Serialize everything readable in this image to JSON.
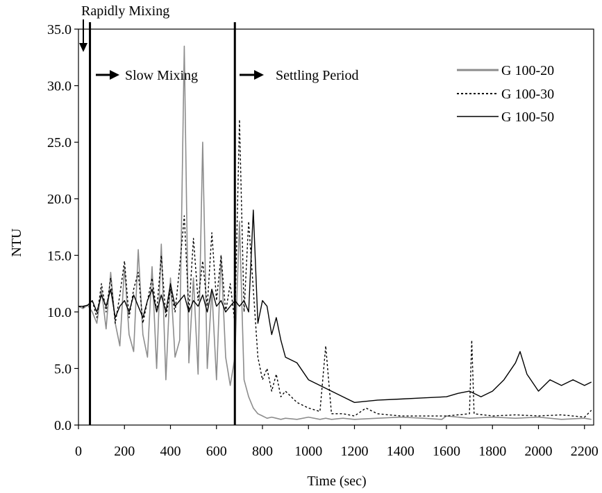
{
  "chart_data": {
    "type": "line",
    "title": "",
    "xlabel": "Time (sec)",
    "ylabel": "NTU",
    "xlim": [
      0,
      2240
    ],
    "ylim": [
      0,
      35
    ],
    "x_ticks": [
      0,
      200,
      400,
      600,
      800,
      1000,
      1200,
      1400,
      1600,
      1800,
      2000,
      2200
    ],
    "x_tick_labels": [
      "0",
      "200",
      "400",
      "600",
      "800",
      "1000",
      "1200",
      "1400",
      "1600",
      "1800",
      "2000",
      "2200"
    ],
    "y_ticks": [
      0,
      5,
      10,
      15,
      20,
      25,
      30,
      35
    ],
    "y_tick_labels": [
      "0.0",
      "5.0",
      "10.0",
      "15.0",
      "20.0",
      "25.0",
      "30.0",
      "35.0"
    ],
    "grid": false,
    "legend_position": "top-right",
    "phase_lines": [
      {
        "x": 50,
        "label": "Rapidly Mixing"
      },
      {
        "x": 680,
        "label": "Slow Mixing"
      }
    ],
    "annotations": [
      {
        "text": "Rapidly Mixing"
      },
      {
        "text": "Slow Mixing"
      },
      {
        "text": "Settling Period"
      }
    ],
    "series": [
      {
        "name": "G 100-20",
        "style": "gray",
        "color": "#8c8c8c",
        "x": [
          0,
          20,
          40,
          60,
          80,
          100,
          120,
          140,
          160,
          180,
          200,
          220,
          240,
          260,
          280,
          300,
          320,
          340,
          360,
          380,
          400,
          420,
          440,
          460,
          480,
          500,
          520,
          540,
          560,
          580,
          600,
          620,
          640,
          660,
          680,
          700,
          720,
          740,
          760,
          780,
          800,
          820,
          840,
          860,
          880,
          900,
          950,
          1000,
          1050,
          1075,
          1100,
          1150,
          1200,
          1300,
          1400,
          1500,
          1580,
          1600,
          1700,
          1800,
          1900,
          2000,
          2100,
          2200,
          2230
        ],
        "values": [
          10.5,
          10.3,
          10.6,
          10.0,
          9.0,
          12.0,
          8.5,
          13.5,
          9.0,
          7.0,
          14.0,
          8.0,
          6.5,
          15.5,
          8.0,
          6.0,
          14.0,
          5.0,
          16.0,
          4.0,
          13.0,
          6.0,
          7.5,
          33.5,
          5.5,
          13.0,
          4.5,
          25.0,
          5.0,
          12.0,
          4.0,
          15.0,
          6.0,
          3.5,
          6.0,
          18.0,
          4.0,
          2.5,
          1.5,
          1.0,
          0.8,
          0.6,
          0.7,
          0.6,
          0.5,
          0.6,
          0.5,
          0.7,
          0.5,
          0.6,
          0.5,
          0.6,
          0.5,
          0.6,
          0.7,
          0.6,
          0.5,
          0.8,
          0.6,
          0.7,
          0.6,
          0.7,
          0.5,
          0.6,
          0.5
        ]
      },
      {
        "name": "G 100-30",
        "style": "dotted",
        "color": "#000000",
        "x": [
          0,
          20,
          40,
          60,
          80,
          100,
          120,
          140,
          160,
          180,
          200,
          220,
          240,
          260,
          280,
          300,
          320,
          340,
          360,
          380,
          400,
          420,
          440,
          460,
          480,
          500,
          520,
          540,
          560,
          580,
          600,
          620,
          640,
          660,
          680,
          700,
          720,
          740,
          760,
          780,
          800,
          820,
          840,
          860,
          880,
          900,
          950,
          1000,
          1050,
          1075,
          1100,
          1150,
          1200,
          1250,
          1300,
          1400,
          1500,
          1600,
          1700,
          1710,
          1720,
          1800,
          1900,
          2000,
          2100,
          2200,
          2230
        ],
        "values": [
          10.5,
          10.4,
          10.6,
          11.0,
          9.5,
          12.5,
          10.0,
          13.0,
          9.0,
          11.5,
          14.5,
          9.5,
          12.0,
          13.5,
          9.0,
          11.0,
          13.0,
          10.0,
          15.0,
          9.5,
          12.0,
          10.0,
          14.0,
          18.5,
          10.0,
          16.5,
          11.0,
          14.5,
          10.5,
          17.0,
          11.0,
          15.0,
          10.0,
          12.5,
          9.0,
          27.0,
          10.0,
          18.0,
          12.0,
          6.0,
          4.0,
          5.0,
          3.0,
          4.5,
          2.5,
          3.0,
          2.0,
          1.5,
          1.2,
          7.0,
          1.0,
          1.0,
          0.8,
          1.5,
          1.0,
          0.8,
          0.8,
          0.8,
          1.0,
          7.5,
          1.0,
          0.8,
          0.9,
          0.8,
          0.9,
          0.7,
          1.3
        ]
      },
      {
        "name": "G 100-50",
        "style": "solid",
        "color": "#000000",
        "x": [
          0,
          20,
          40,
          60,
          80,
          100,
          120,
          140,
          160,
          180,
          200,
          220,
          240,
          260,
          280,
          300,
          320,
          340,
          360,
          380,
          400,
          420,
          440,
          460,
          480,
          500,
          520,
          540,
          560,
          580,
          600,
          620,
          640,
          660,
          680,
          700,
          720,
          740,
          760,
          780,
          800,
          820,
          840,
          860,
          880,
          900,
          950,
          1000,
          1050,
          1100,
          1150,
          1200,
          1300,
          1400,
          1500,
          1600,
          1650,
          1700,
          1750,
          1800,
          1850,
          1900,
          1920,
          1950,
          2000,
          2050,
          2100,
          2150,
          2200,
          2230
        ],
        "values": [
          10.5,
          10.5,
          10.6,
          11.0,
          10.0,
          11.5,
          10.5,
          12.0,
          9.5,
          10.5,
          11.0,
          10.0,
          11.5,
          10.5,
          9.5,
          11.0,
          12.0,
          10.0,
          11.5,
          10.0,
          12.5,
          10.5,
          11.0,
          11.5,
          10.0,
          11.0,
          10.5,
          11.5,
          10.0,
          12.0,
          10.5,
          11.0,
          10.0,
          10.5,
          11.0,
          10.5,
          11.0,
          10.0,
          19.0,
          9.0,
          11.0,
          10.5,
          8.0,
          9.5,
          7.5,
          6.0,
          5.5,
          4.0,
          3.5,
          3.0,
          2.5,
          2.0,
          2.2,
          2.3,
          2.4,
          2.5,
          2.8,
          3.0,
          2.5,
          3.0,
          4.0,
          5.5,
          6.5,
          4.5,
          3.0,
          4.0,
          3.5,
          4.0,
          3.5,
          3.8
        ]
      }
    ]
  }
}
